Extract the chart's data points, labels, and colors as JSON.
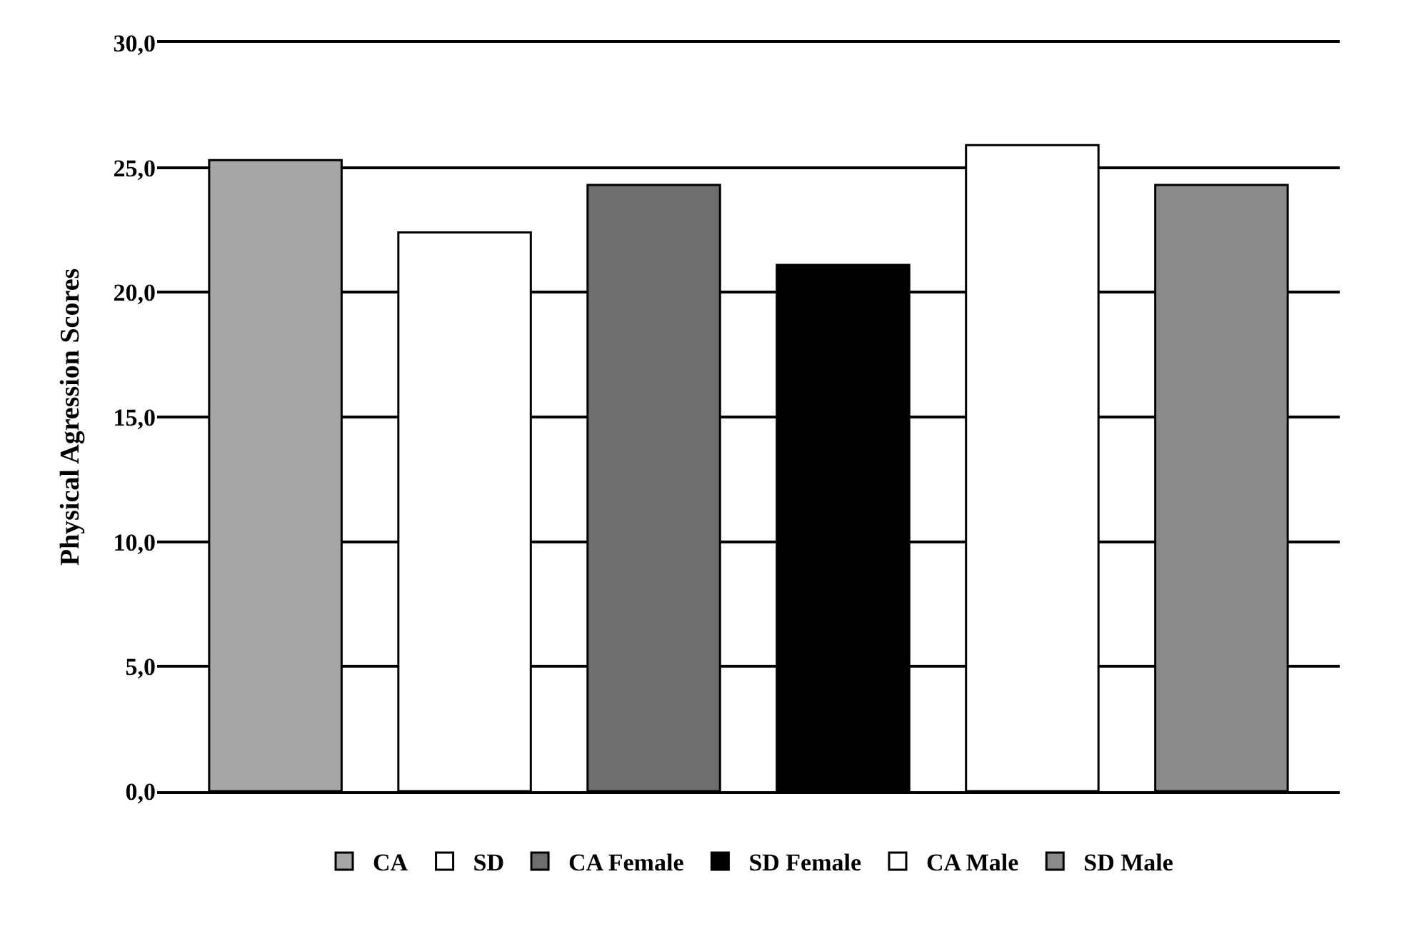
{
  "chart_data": {
    "type": "bar",
    "ylabel": "Physical Agression Scores",
    "categories": [
      null
    ],
    "series": [
      {
        "name": "CA",
        "color": "#a6a6a6",
        "values": [
          25.3
        ]
      },
      {
        "name": "SD",
        "color": "#ffffff",
        "values": [
          22.4
        ]
      },
      {
        "name": "CA Female",
        "color": "#6e6e6e",
        "values": [
          24.3
        ]
      },
      {
        "name": "SD Female",
        "color": "#000000",
        "values": [
          21.1
        ]
      },
      {
        "name": "CA Male",
        "color": "#ffffff",
        "values": [
          25.9
        ]
      },
      {
        "name": "SD Male",
        "color": "#8a8a8a",
        "values": [
          24.3
        ]
      }
    ],
    "ylim": [
      0,
      30
    ],
    "yticks": [
      {
        "value": 0,
        "label": "0,0"
      },
      {
        "value": 5,
        "label": "5,0"
      },
      {
        "value": 10,
        "label": "10,0"
      },
      {
        "value": 15,
        "label": "15,0"
      },
      {
        "value": 20,
        "label": "20,0"
      },
      {
        "value": 25,
        "label": "25,0"
      },
      {
        "value": 30,
        "label": "30,0"
      }
    ],
    "grid": "y",
    "legend": "bottom"
  }
}
